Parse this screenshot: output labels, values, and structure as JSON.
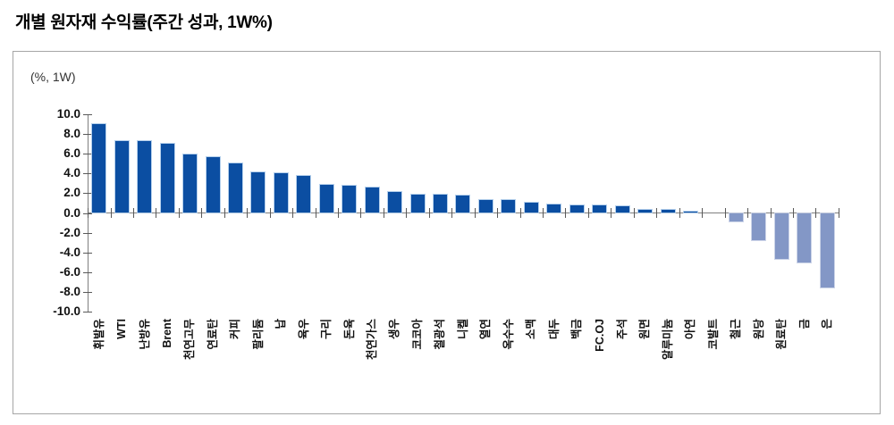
{
  "title": "개별 원자재 수익률(주간 성과, 1W%)",
  "chart_data": {
    "type": "bar",
    "title": "개별 원자재 수익률(주간 성과, 1W%)",
    "unit_label": "(%, 1W)",
    "categories": [
      "휘발유",
      "WTI",
      "난방유",
      "Brent",
      "천연고무",
      "연료탄",
      "커피",
      "팔리듐",
      "납",
      "육우",
      "구리",
      "돈육",
      "천연가스",
      "생우",
      "코코아",
      "철광석",
      "니켈",
      "열연",
      "옥수수",
      "소맥",
      "대두",
      "백금",
      "FC.OJ",
      "주석",
      "원면",
      "알루미늄",
      "아연",
      "코발트",
      "철근",
      "원당",
      "원료탄",
      "금",
      "은"
    ],
    "values": [
      9.0,
      7.2,
      7.2,
      7.0,
      5.9,
      5.6,
      5.0,
      4.1,
      4.0,
      3.7,
      2.8,
      2.7,
      2.5,
      2.1,
      1.8,
      1.8,
      1.7,
      1.3,
      1.3,
      1.0,
      0.8,
      0.7,
      0.7,
      0.6,
      0.3,
      0.25,
      0.1,
      0.0,
      -0.8,
      -2.7,
      -4.6,
      -5.0,
      -7.5
    ],
    "xlabel": "",
    "ylabel": "(%, 1W)",
    "ylim": [
      -10.0,
      10.0
    ],
    "ytick_step": 2.0,
    "ytick_labels": [
      "10.0",
      "8.0",
      "6.0",
      "4.0",
      "2.0",
      "0.0",
      "-2.0",
      "-4.0",
      "-6.0",
      "-8.0",
      "-10.0"
    ],
    "grid": "off",
    "legend": "none",
    "colors": {
      "positive_bar": "#0b4ea2",
      "negative_bar": "#8397c6",
      "axis": "#7f7f7f",
      "tick_text": "#111111"
    }
  }
}
